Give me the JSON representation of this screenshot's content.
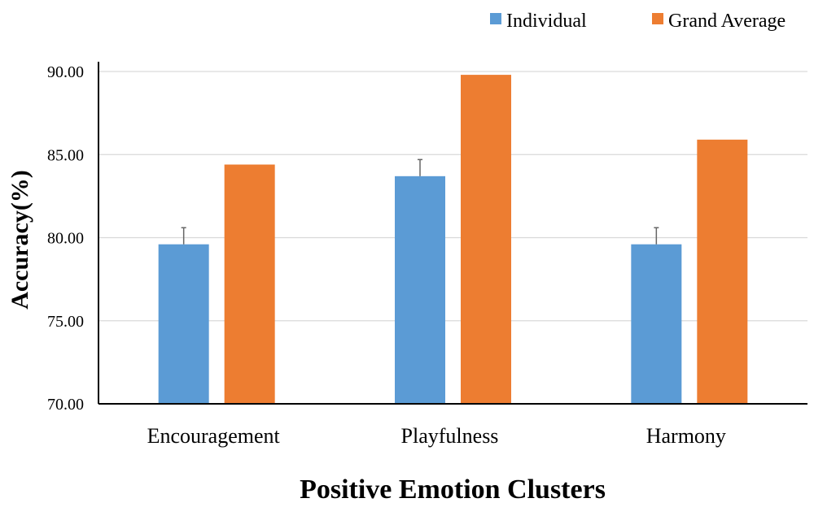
{
  "colors": {
    "individual": "#5b9bd5",
    "grand_average": "#ed7d31",
    "grid": "#d9d9d9",
    "axis": "#000000",
    "error_bar": "#666666"
  },
  "chart_data": {
    "type": "bar",
    "title": "",
    "xlabel": "Positive Emotion Clusters",
    "ylabel": "Accuracy(%)",
    "ylim": [
      70,
      90
    ],
    "yticks": [
      70,
      75,
      80,
      85,
      90
    ],
    "ytick_labels": [
      "70.00",
      "75.00",
      "80.00",
      "85.00",
      "90.00"
    ],
    "categories": [
      "Encouragement",
      "Playfulness",
      "Harmony"
    ],
    "grid": true,
    "legend_position": "top-right",
    "series": [
      {
        "name": "Individual",
        "values": [
          79.6,
          83.7,
          79.6
        ],
        "error": [
          1.0,
          1.0,
          1.0
        ]
      },
      {
        "name": "Grand Average",
        "values": [
          84.4,
          89.8,
          85.9
        ]
      }
    ]
  }
}
